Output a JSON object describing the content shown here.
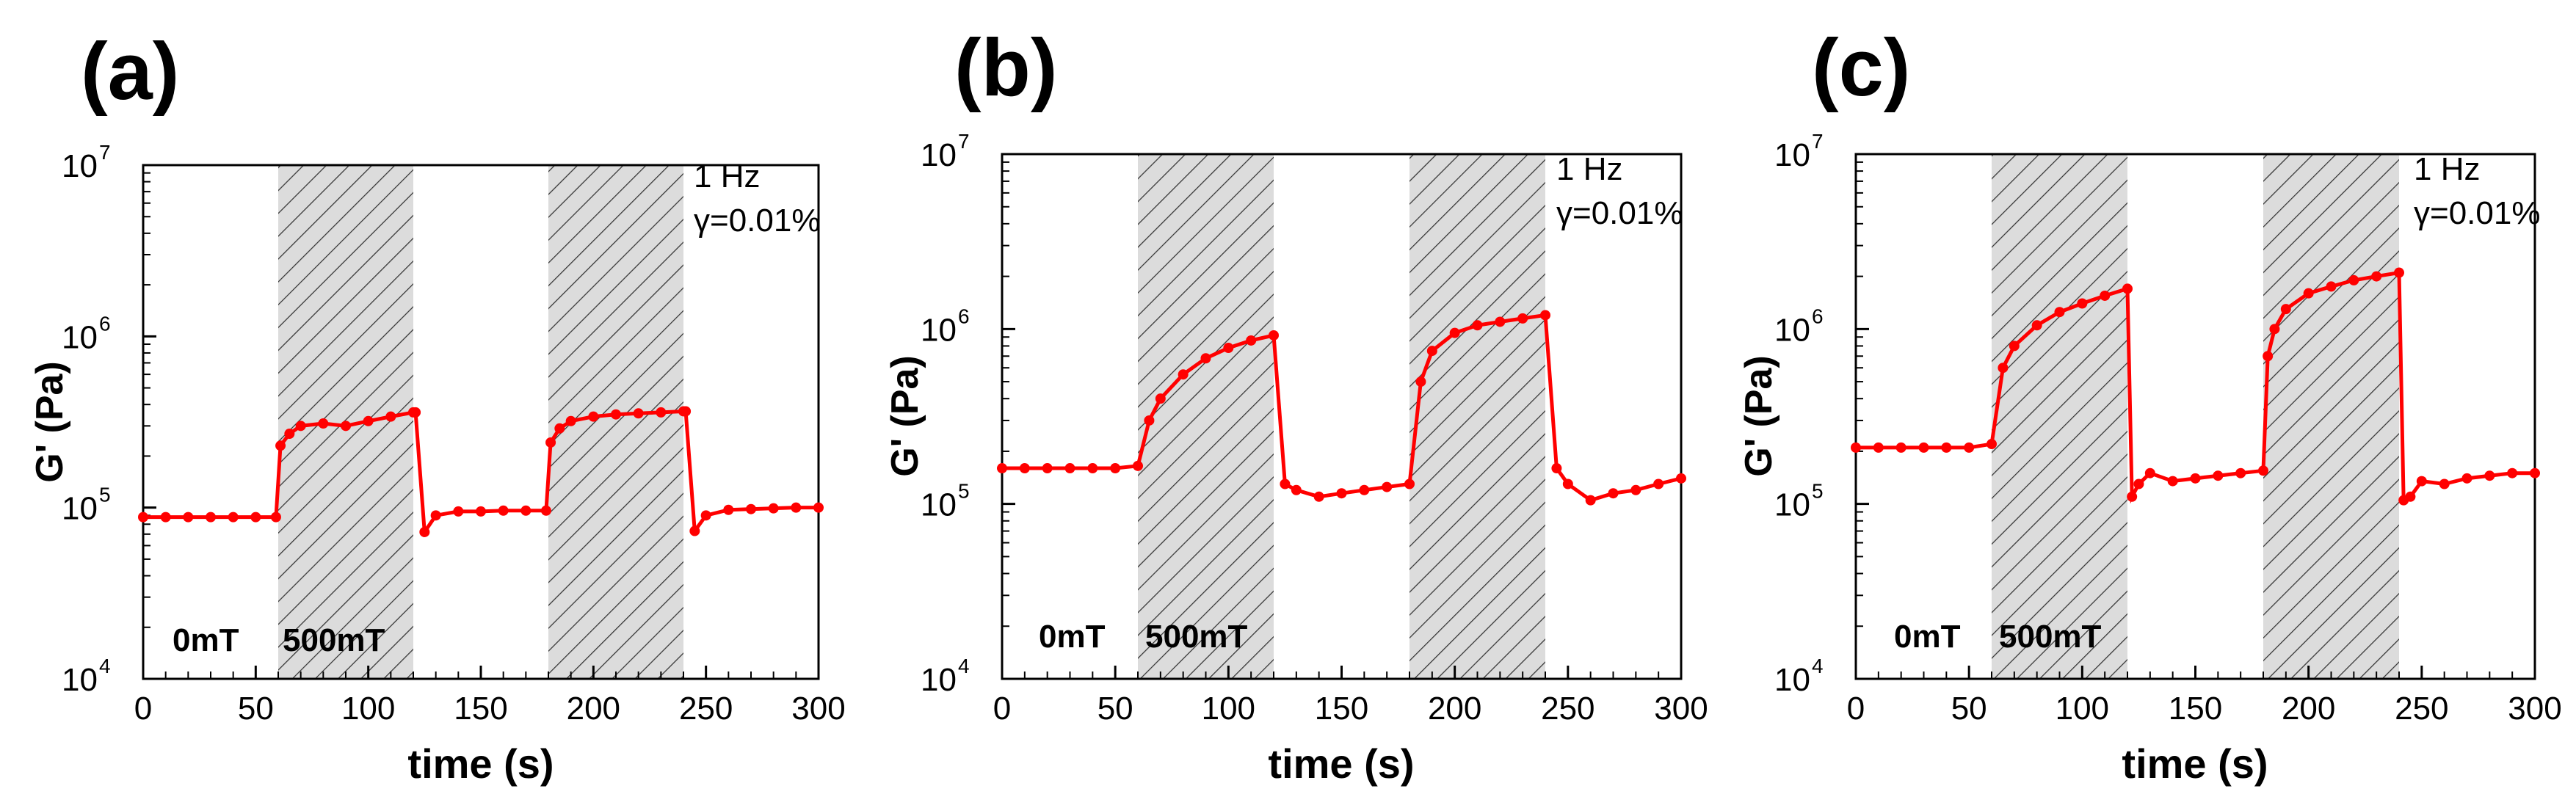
{
  "chart_data": [
    {
      "type": "line",
      "panel_label": "(a)",
      "xlabel": "time (s)",
      "ylabel": "G' (Pa)",
      "xlim": [
        0,
        300
      ],
      "ylim": [
        10000,
        10000000
      ],
      "yscale": "log",
      "x_ticks": [
        "0",
        "50",
        "100",
        "150",
        "200",
        "250",
        "300"
      ],
      "y_ticks": [
        {
          "base": "10",
          "exp": "4",
          "value": 10000
        },
        {
          "base": "10",
          "exp": "5",
          "value": 100000
        },
        {
          "base": "10",
          "exp": "6",
          "value": 1000000
        },
        {
          "base": "10",
          "exp": "7",
          "value": 10000000
        }
      ],
      "annotations": [
        "1 Hz",
        "γ=0.01%"
      ],
      "field_labels": [
        "0mT",
        "500mT"
      ],
      "shaded_intervals": [
        [
          60,
          120
        ],
        [
          180,
          240
        ]
      ],
      "series": [
        {
          "color": "#ff0000",
          "x": [
            0,
            10,
            20,
            30,
            40,
            50,
            59,
            61,
            65,
            70,
            80,
            90,
            100,
            110,
            120,
            121,
            125,
            130,
            140,
            150,
            160,
            170,
            179,
            181,
            185,
            190,
            200,
            210,
            220,
            230,
            240,
            241,
            245,
            250,
            260,
            270,
            280,
            290,
            300
          ],
          "y": [
            88000,
            88000,
            88000,
            88000,
            88000,
            88000,
            88000,
            230000,
            270000,
            300000,
            310000,
            300000,
            320000,
            340000,
            360000,
            360000,
            72000,
            90000,
            95000,
            95000,
            96000,
            96000,
            96000,
            240000,
            290000,
            320000,
            340000,
            350000,
            355000,
            360000,
            365000,
            365000,
            73000,
            90000,
            97000,
            98000,
            99000,
            100000,
            100000
          ]
        }
      ]
    },
    {
      "type": "line",
      "panel_label": "(b)",
      "xlabel": "time (s)",
      "ylabel": "G' (Pa)",
      "xlim": [
        0,
        300
      ],
      "ylim": [
        10000,
        10000000
      ],
      "yscale": "log",
      "x_ticks": [
        "0",
        "50",
        "100",
        "150",
        "200",
        "250",
        "300"
      ],
      "y_ticks": [
        {
          "base": "10",
          "exp": "4",
          "value": 10000
        },
        {
          "base": "10",
          "exp": "5",
          "value": 100000
        },
        {
          "base": "10",
          "exp": "6",
          "value": 1000000
        },
        {
          "base": "10",
          "exp": "7",
          "value": 10000000
        }
      ],
      "annotations": [
        "1 Hz",
        "γ=0.01%"
      ],
      "field_labels": [
        "0mT",
        "500mT"
      ],
      "shaded_intervals": [
        [
          60,
          120
        ],
        [
          180,
          240
        ]
      ],
      "series": [
        {
          "color": "#ff0000",
          "x": [
            0,
            10,
            20,
            30,
            40,
            50,
            60,
            65,
            70,
            80,
            90,
            100,
            110,
            120,
            125,
            130,
            140,
            150,
            160,
            170,
            180,
            185,
            190,
            200,
            210,
            220,
            230,
            240,
            245,
            250,
            260,
            270,
            280,
            290,
            300
          ],
          "y": [
            160000,
            160000,
            160000,
            160000,
            160000,
            160000,
            165000,
            300000,
            400000,
            550000,
            680000,
            780000,
            860000,
            920000,
            130000,
            120000,
            110000,
            115000,
            120000,
            125000,
            130000,
            500000,
            750000,
            950000,
            1050000,
            1100000,
            1150000,
            1200000,
            160000,
            130000,
            105000,
            115000,
            120000,
            130000,
            140000
          ]
        }
      ]
    },
    {
      "type": "line",
      "panel_label": "(c)",
      "xlabel": "time (s)",
      "ylabel": "G' (Pa)",
      "xlim": [
        0,
        300
      ],
      "ylim": [
        10000,
        10000000
      ],
      "yscale": "log",
      "x_ticks": [
        "0",
        "50",
        "100",
        "150",
        "200",
        "250",
        "300"
      ],
      "y_ticks": [
        {
          "base": "10",
          "exp": "4",
          "value": 10000
        },
        {
          "base": "10",
          "exp": "5",
          "value": 100000
        },
        {
          "base": "10",
          "exp": "6",
          "value": 1000000
        },
        {
          "base": "10",
          "exp": "7",
          "value": 10000000
        }
      ],
      "annotations": [
        "1 Hz",
        "γ=0.01%"
      ],
      "field_labels": [
        "0mT",
        "500mT"
      ],
      "shaded_intervals": [
        [
          60,
          120
        ],
        [
          180,
          240
        ]
      ],
      "series": [
        {
          "color": "#ff0000",
          "x": [
            0,
            10,
            20,
            30,
            40,
            50,
            60,
            65,
            70,
            80,
            90,
            100,
            110,
            120,
            122,
            125,
            130,
            140,
            150,
            160,
            170,
            180,
            182,
            185,
            190,
            200,
            210,
            220,
            230,
            240,
            242,
            245,
            250,
            260,
            270,
            280,
            290,
            300
          ],
          "y": [
            210000,
            210000,
            210000,
            210000,
            210000,
            210000,
            220000,
            600000,
            800000,
            1050000,
            1250000,
            1400000,
            1550000,
            1700000,
            110000,
            130000,
            150000,
            135000,
            140000,
            145000,
            150000,
            155000,
            700000,
            1000000,
            1300000,
            1600000,
            1750000,
            1900000,
            2000000,
            2100000,
            105000,
            110000,
            135000,
            130000,
            140000,
            145000,
            150000,
            150000
          ]
        }
      ]
    }
  ]
}
